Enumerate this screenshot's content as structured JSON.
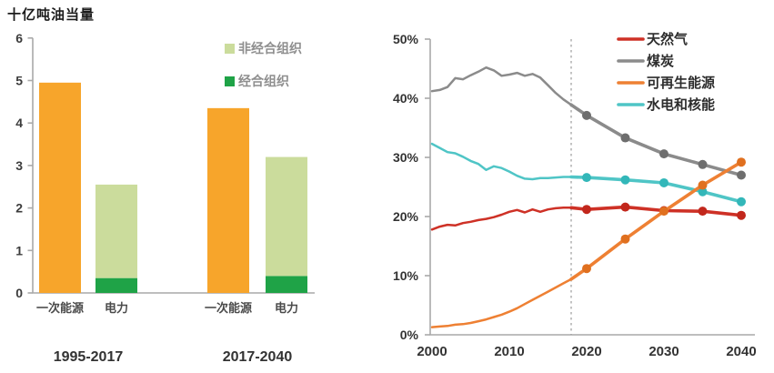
{
  "chart_data": [
    {
      "type": "bar",
      "title": "十亿吨油当量",
      "xlabel": "",
      "ylabel": "",
      "ylim": [
        0,
        6
      ],
      "y_ticks": [
        0,
        1,
        2,
        3,
        4,
        5,
        6
      ],
      "grid": false,
      "legend_position": "upper right",
      "groups": [
        "1995-2017",
        "2017-2040"
      ],
      "bar_categories": [
        "一次能源",
        "电力"
      ],
      "bars": [
        {
          "group": "1995-2017",
          "category": "一次能源",
          "segments": [
            {
              "name": "一次能源",
              "value": 4.95,
              "color": "#F7A52B"
            }
          ]
        },
        {
          "group": "1995-2017",
          "category": "电力",
          "segments": [
            {
              "name": "经合组织",
              "value": 0.35,
              "color": "#1FA347"
            },
            {
              "name": "非经合组织",
              "value": 2.2,
              "color": "#CBDC9C"
            }
          ]
        },
        {
          "group": "2017-2040",
          "category": "一次能源",
          "segments": [
            {
              "name": "一次能源",
              "value": 4.35,
              "color": "#F7A52B"
            }
          ]
        },
        {
          "group": "2017-2040",
          "category": "电力",
          "segments": [
            {
              "name": "经合组织",
              "value": 0.4,
              "color": "#1FA347"
            },
            {
              "name": "非经合组织",
              "value": 2.8,
              "color": "#CBDC9C"
            }
          ]
        }
      ],
      "legend": [
        {
          "label": "非经合组织",
          "color": "#CBDC9C"
        },
        {
          "label": "经合组织",
          "color": "#1FA347"
        }
      ]
    },
    {
      "type": "line",
      "title": "",
      "xlabel": "",
      "ylabel": "",
      "xlim": [
        2000,
        2040
      ],
      "ylim": [
        0,
        50
      ],
      "x_ticks": [
        2000,
        2010,
        2020,
        2030,
        2040
      ],
      "y_ticks": [
        0,
        10,
        20,
        30,
        40,
        50
      ],
      "y_tick_labels": [
        "0%",
        "10%",
        "20%",
        "30%",
        "40%",
        "50%"
      ],
      "grid": false,
      "legend_position": "upper right",
      "annotation_line_x": 2018,
      "series": [
        {
          "name": "天然气",
          "color": "#CE3126",
          "marker_color": "#C2271C",
          "marker_years": [
            2020,
            2025,
            2030,
            2035,
            2040
          ],
          "points": [
            [
              2000,
              17.8
            ],
            [
              2001,
              18.3
            ],
            [
              2002,
              18.6
            ],
            [
              2003,
              18.5
            ],
            [
              2004,
              18.9
            ],
            [
              2005,
              19.1
            ],
            [
              2006,
              19.4
            ],
            [
              2007,
              19.6
            ],
            [
              2008,
              19.9
            ],
            [
              2009,
              20.3
            ],
            [
              2010,
              20.8
            ],
            [
              2011,
              21.1
            ],
            [
              2012,
              20.7
            ],
            [
              2013,
              21.2
            ],
            [
              2014,
              20.8
            ],
            [
              2015,
              21.2
            ],
            [
              2016,
              21.4
            ],
            [
              2017,
              21.5
            ],
            [
              2018,
              21.5
            ],
            [
              2020,
              21.2
            ],
            [
              2025,
              21.6
            ],
            [
              2030,
              21.0
            ],
            [
              2035,
              20.9
            ],
            [
              2040,
              20.2
            ]
          ]
        },
        {
          "name": "煤炭",
          "color": "#8B8B8B",
          "marker_color": "#6E6E6E",
          "marker_years": [
            2020,
            2025,
            2030,
            2035,
            2040
          ],
          "points": [
            [
              2000,
              41.2
            ],
            [
              2001,
              41.4
            ],
            [
              2002,
              41.9
            ],
            [
              2003,
              43.4
            ],
            [
              2004,
              43.2
            ],
            [
              2005,
              43.9
            ],
            [
              2006,
              44.5
            ],
            [
              2007,
              45.2
            ],
            [
              2008,
              44.7
            ],
            [
              2009,
              43.8
            ],
            [
              2010,
              44.0
            ],
            [
              2011,
              44.3
            ],
            [
              2012,
              43.8
            ],
            [
              2013,
              44.1
            ],
            [
              2014,
              43.5
            ],
            [
              2015,
              42.2
            ],
            [
              2016,
              40.9
            ],
            [
              2017,
              39.8
            ],
            [
              2018,
              38.9
            ],
            [
              2020,
              37.1
            ],
            [
              2025,
              33.3
            ],
            [
              2030,
              30.6
            ],
            [
              2035,
              28.8
            ],
            [
              2040,
              27.0
            ]
          ]
        },
        {
          "name": "可再生能源",
          "color": "#EE8033",
          "marker_color": "#E0701F",
          "marker_years": [
            2020,
            2025,
            2030,
            2035,
            2040
          ],
          "points": [
            [
              2000,
              1.3
            ],
            [
              2001,
              1.4
            ],
            [
              2002,
              1.5
            ],
            [
              2003,
              1.7
            ],
            [
              2004,
              1.8
            ],
            [
              2005,
              2.0
            ],
            [
              2006,
              2.3
            ],
            [
              2007,
              2.6
            ],
            [
              2008,
              3.0
            ],
            [
              2009,
              3.4
            ],
            [
              2010,
              3.9
            ],
            [
              2011,
              4.5
            ],
            [
              2012,
              5.2
            ],
            [
              2013,
              5.9
            ],
            [
              2014,
              6.6
            ],
            [
              2015,
              7.3
            ],
            [
              2016,
              8.0
            ],
            [
              2017,
              8.7
            ],
            [
              2018,
              9.4
            ],
            [
              2020,
              11.2
            ],
            [
              2025,
              16.2
            ],
            [
              2030,
              20.9
            ],
            [
              2035,
              25.3
            ],
            [
              2040,
              29.2
            ]
          ]
        },
        {
          "name": "水电和核能",
          "color": "#4FC5C6",
          "marker_color": "#33B7B9",
          "marker_years": [
            2020,
            2025,
            2030,
            2035,
            2040
          ],
          "points": [
            [
              2000,
              32.3
            ],
            [
              2001,
              31.6
            ],
            [
              2002,
              30.9
            ],
            [
              2003,
              30.7
            ],
            [
              2004,
              30.1
            ],
            [
              2005,
              29.4
            ],
            [
              2006,
              28.9
            ],
            [
              2007,
              27.9
            ],
            [
              2008,
              28.5
            ],
            [
              2009,
              28.2
            ],
            [
              2010,
              27.6
            ],
            [
              2011,
              26.9
            ],
            [
              2012,
              26.4
            ],
            [
              2013,
              26.3
            ],
            [
              2014,
              26.5
            ],
            [
              2015,
              26.5
            ],
            [
              2016,
              26.6
            ],
            [
              2017,
              26.7
            ],
            [
              2018,
              26.7
            ],
            [
              2020,
              26.6
            ],
            [
              2025,
              26.2
            ],
            [
              2030,
              25.7
            ],
            [
              2035,
              24.2
            ],
            [
              2040,
              22.5
            ]
          ]
        }
      ]
    }
  ],
  "style": {
    "axis_color": "#A9A9A9",
    "dashed_line_color": "#9B9B9B",
    "background": "#ffffff"
  }
}
